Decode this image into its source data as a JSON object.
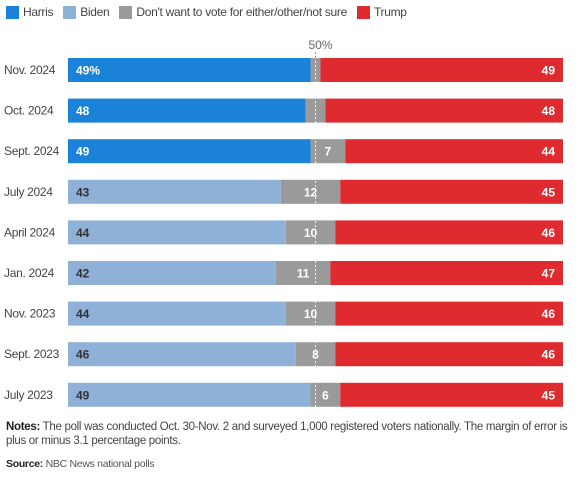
{
  "legend": [
    {
      "name": "Harris",
      "color": "#1a82d8"
    },
    {
      "name": "Biden",
      "color": "#8fb1d8"
    },
    {
      "name": "Don't want to vote for either/other/not sure",
      "color": "#9a9a9a"
    },
    {
      "name": "Trump",
      "color": "#df2a2f"
    }
  ],
  "fifty_label": "50%",
  "chart_data": {
    "type": "bar",
    "orientation": "horizontal-stacked",
    "categories": [
      "Nov. 2024",
      "Oct. 2024",
      "Sept. 2024",
      "July 2024",
      "April 2024",
      "Jan. 2024",
      "Nov. 2023",
      "Sept. 2023",
      "July 2023"
    ],
    "series": [
      {
        "name": "Harris",
        "color": "#1a82d8",
        "values": [
          49,
          48,
          49,
          null,
          null,
          null,
          null,
          null,
          null
        ]
      },
      {
        "name": "Biden",
        "color": "#8fb1d8",
        "values": [
          null,
          null,
          null,
          43,
          44,
          42,
          44,
          46,
          49
        ]
      },
      {
        "name": "Don't want to vote for either/other/not sure",
        "color": "#9a9a9a",
        "values": [
          2,
          4,
          7,
          12,
          10,
          11,
          10,
          8,
          6
        ]
      },
      {
        "name": "Trump",
        "color": "#df2a2f",
        "values": [
          49,
          48,
          44,
          45,
          46,
          47,
          46,
          46,
          45
        ]
      }
    ],
    "labels": {
      "left": [
        "49%",
        "48",
        "49",
        "43",
        "44",
        "42",
        "44",
        "46",
        "49"
      ],
      "middle": [
        "",
        "",
        "7",
        "12",
        "10",
        "11",
        "10",
        "8",
        "6"
      ],
      "right": [
        "49",
        "48",
        "44",
        "45",
        "46",
        "47",
        "46",
        "46",
        "45"
      ]
    },
    "xlim": [
      0,
      100
    ],
    "reference_line": 50
  },
  "notes": {
    "label": "Notes:",
    "text": " The poll was conducted Oct. 30-Nov. 2 and surveyed 1,000 registered voters nationally. The margin of error is plus or minus 3.1 percentage points."
  },
  "source": {
    "label": "Source:",
    "text": " NBC News national polls"
  }
}
